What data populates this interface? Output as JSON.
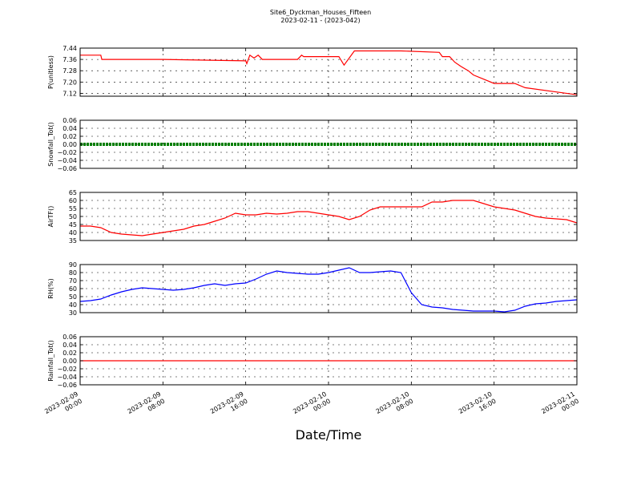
{
  "figure": {
    "title": "Site6_Dyckman_Houses_Fifteen",
    "subtitle": "2023-02-11 - (2023-042)",
    "xlabel": "Date/Time"
  },
  "chart_data": [
    {
      "type": "line",
      "ylabel": "P(unitless)",
      "ylim": [
        7.1,
        7.44
      ],
      "yticks": [
        "7.44",
        "7.36",
        "7.28",
        "7.20",
        "7.12"
      ],
      "ytick_values": [
        7.44,
        7.36,
        7.28,
        7.2,
        7.12
      ],
      "color": "#ff0000",
      "grid": true,
      "x_hours": [
        0,
        2,
        2.1,
        4,
        8,
        16,
        16.1,
        16.4,
        16.8,
        17.2,
        17.6,
        21,
        21.4,
        21.6,
        25,
        25.5,
        26.5,
        31,
        34.7,
        35,
        35.7,
        36.2,
        36.8,
        37.5,
        38,
        39,
        40,
        42,
        43,
        46,
        48
      ],
      "y": [
        7.39,
        7.39,
        7.36,
        7.36,
        7.36,
        7.35,
        7.33,
        7.39,
        7.37,
        7.39,
        7.36,
        7.36,
        7.39,
        7.38,
        7.38,
        7.32,
        7.42,
        7.42,
        7.41,
        7.38,
        7.38,
        7.34,
        7.31,
        7.28,
        7.25,
        7.22,
        7.19,
        7.19,
        7.16,
        7.13,
        7.11
      ]
    },
    {
      "type": "line",
      "ylabel": "Snowfall_Tot()",
      "ylim": [
        -0.06,
        0.06
      ],
      "yticks": [
        "0.06",
        "0.04",
        "0.02",
        "0.00",
        "−0.02",
        "−0.04",
        "−0.06"
      ],
      "ytick_values": [
        0.06,
        0.04,
        0.02,
        0.0,
        -0.02,
        -0.04,
        -0.06
      ],
      "color": "#007f00",
      "grid": true,
      "x_hours": [
        0,
        48
      ],
      "y": [
        0,
        0
      ]
    },
    {
      "type": "line",
      "ylabel": "AirTF()",
      "ylim": [
        35,
        65
      ],
      "yticks": [
        "65",
        "60",
        "55",
        "50",
        "45",
        "40",
        "35"
      ],
      "ytick_values": [
        65,
        60,
        55,
        50,
        45,
        40,
        35
      ],
      "color": "#ff0000",
      "grid": true,
      "x_hours": [
        0,
        1,
        2,
        3,
        4,
        5,
        6,
        7,
        8,
        9,
        10,
        11,
        12,
        13,
        14,
        15,
        16,
        17,
        18,
        19,
        20,
        21,
        22,
        23,
        24,
        25,
        26,
        27,
        28,
        29,
        30,
        31,
        32,
        33,
        34,
        35,
        36,
        37,
        38,
        39,
        40,
        41,
        42,
        43,
        44,
        45,
        46,
        47,
        48
      ],
      "y": [
        44,
        44,
        43,
        40,
        39,
        38.5,
        38,
        39,
        40,
        41,
        42,
        44,
        45,
        47,
        49,
        52,
        51,
        51,
        52,
        51.5,
        52,
        53,
        53,
        52,
        51,
        50,
        48,
        50,
        54,
        56,
        56,
        56,
        56,
        56,
        59,
        59,
        60,
        60,
        60,
        58,
        56,
        55,
        54,
        52,
        50,
        49,
        48.5,
        48,
        46
      ]
    },
    {
      "type": "line",
      "ylabel": "RH(%)",
      "ylim": [
        30,
        90
      ],
      "yticks": [
        "90",
        "80",
        "70",
        "60",
        "50",
        "40",
        "30"
      ],
      "ytick_values": [
        90,
        80,
        70,
        60,
        50,
        40,
        30
      ],
      "color": "#0000ff",
      "grid": true,
      "x_hours": [
        0,
        1,
        2,
        3,
        4,
        5,
        6,
        7,
        8,
        9,
        10,
        11,
        12,
        13,
        14,
        15,
        16,
        17,
        18,
        19,
        20,
        21,
        22,
        23,
        24,
        25,
        26,
        27,
        28,
        29,
        30,
        31,
        32,
        33,
        34,
        35,
        36,
        37,
        38,
        39,
        40,
        41,
        42,
        43,
        44,
        45,
        46,
        47,
        48
      ],
      "y": [
        44,
        45,
        47,
        52,
        56,
        59,
        61,
        60,
        59,
        58,
        59,
        61,
        64,
        66,
        64,
        66,
        67,
        72,
        78,
        82,
        80,
        79,
        78,
        78,
        80,
        83,
        86,
        80,
        80,
        81,
        82,
        80,
        55,
        40,
        37,
        36,
        34,
        33,
        32,
        32,
        32,
        31,
        33,
        38,
        41,
        42,
        44,
        45,
        46
      ]
    },
    {
      "type": "line",
      "ylabel": "Rainfall_Tot()",
      "ylim": [
        -0.06,
        0.06
      ],
      "yticks": [
        "0.06",
        "0.04",
        "0.02",
        "0.00",
        "−0.02",
        "−0.04",
        "−0.06"
      ],
      "ytick_values": [
        0.06,
        0.04,
        0.02,
        0.0,
        -0.02,
        -0.04,
        -0.06
      ],
      "color": "#ff0000",
      "grid": true,
      "x_hours": [
        0,
        48
      ],
      "y": [
        0,
        0
      ]
    }
  ],
  "x_axis": {
    "range_hours": [
      0,
      48
    ],
    "ticks": [
      {
        "hour": 0,
        "line1": "2023-02-09",
        "line2": "00:00"
      },
      {
        "hour": 8,
        "line1": "2023-02-09",
        "line2": "08:00"
      },
      {
        "hour": 16,
        "line1": "2023-02-09",
        "line2": "16:00"
      },
      {
        "hour": 24,
        "line1": "2023-02-10",
        "line2": "00:00"
      },
      {
        "hour": 32,
        "line1": "2023-02-10",
        "line2": "08:00"
      },
      {
        "hour": 40,
        "line1": "2023-02-10",
        "line2": "16:00"
      },
      {
        "hour": 48,
        "line1": "2023-02-11",
        "line2": "00:00"
      }
    ]
  }
}
